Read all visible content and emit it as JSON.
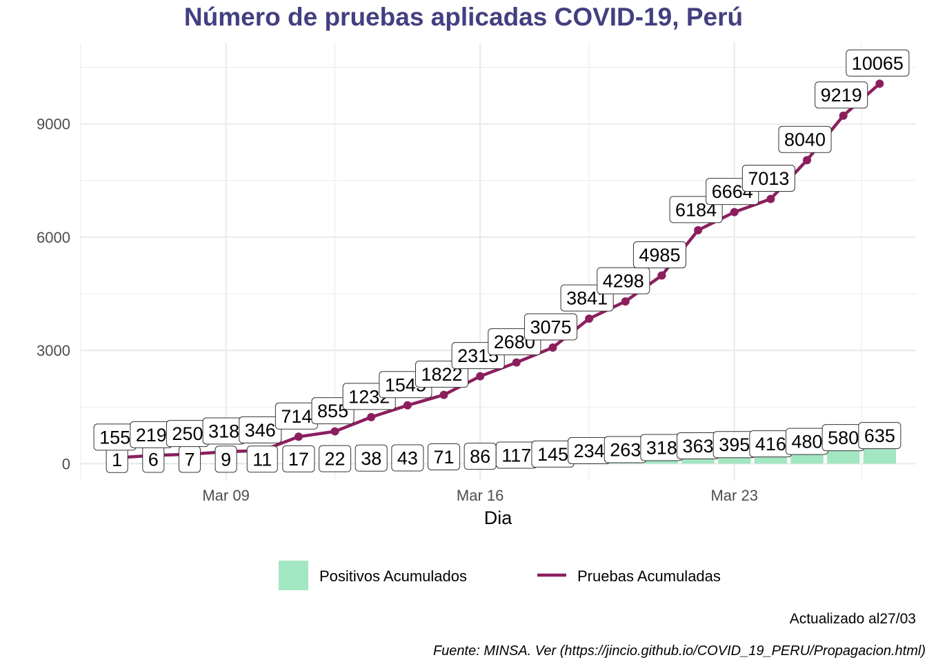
{
  "chart_data": {
    "type": "line",
    "title": "Número de pruebas aplicadas COVID-19, Perú",
    "xlabel": "Dia",
    "ylabel": "",
    "x": [
      "2020-03-06",
      "2020-03-07",
      "2020-03-08",
      "2020-03-09",
      "2020-03-10",
      "2020-03-11",
      "2020-03-12",
      "2020-03-13",
      "2020-03-14",
      "2020-03-15",
      "2020-03-16",
      "2020-03-17",
      "2020-03-18",
      "2020-03-19",
      "2020-03-20",
      "2020-03-21",
      "2020-03-22",
      "2020-03-23",
      "2020-03-24",
      "2020-03-25",
      "2020-03-26",
      "2020-03-27"
    ],
    "x_ticks": [
      {
        "date": "2020-03-09",
        "label": "Mar 09"
      },
      {
        "date": "2020-03-16",
        "label": "Mar 16"
      },
      {
        "date": "2020-03-23",
        "label": "Mar 23"
      }
    ],
    "y_ticks": [
      0,
      3000,
      6000,
      9000
    ],
    "ylim": [
      -450,
      11150
    ],
    "xlim": [
      "2020-03-05",
      "2020-03-28"
    ],
    "grid": true,
    "legend_position": "bottom",
    "series": [
      {
        "name": "Pruebas Acumuladas",
        "kind": "line",
        "color": "#8B1F5E",
        "x": [
          "2020-03-06",
          "2020-03-07",
          "2020-03-08",
          "2020-03-09",
          "2020-03-10",
          "2020-03-11",
          "2020-03-12",
          "2020-03-13",
          "2020-03-14",
          "2020-03-15",
          "2020-03-16",
          "2020-03-17",
          "2020-03-18",
          "2020-03-19",
          "2020-03-20",
          "2020-03-21",
          "2020-03-22",
          "2020-03-23",
          "2020-03-24",
          "2020-03-25",
          "2020-03-26",
          "2020-03-27"
        ],
        "values": [
          155,
          219,
          250,
          318,
          346,
          714,
          855,
          1232,
          1545,
          1822,
          2315,
          2680,
          3075,
          3841,
          4298,
          4985,
          6184,
          6664,
          7013,
          8040,
          9219,
          10065
        ],
        "labels": [
          "155",
          "219",
          "250",
          "318",
          "346",
          "714",
          "855",
          "1232",
          "1545",
          "1822",
          "2315",
          "2680",
          "3075",
          "3841",
          "4298",
          "4985",
          "6184",
          "6664",
          "7013",
          "8040",
          "9219",
          "10065"
        ]
      },
      {
        "name": "Positivos Acumulados",
        "kind": "bar",
        "color": "#A3E6C2",
        "x": [
          "2020-03-06",
          "2020-03-07",
          "2020-03-08",
          "2020-03-09",
          "2020-03-10",
          "2020-03-11",
          "2020-03-12",
          "2020-03-13",
          "2020-03-14",
          "2020-03-15",
          "2020-03-16",
          "2020-03-17",
          "2020-03-18",
          "2020-03-19",
          "2020-03-20",
          "2020-03-21",
          "2020-03-22",
          "2020-03-23",
          "2020-03-24",
          "2020-03-25",
          "2020-03-26",
          "2020-03-27"
        ],
        "values": [
          1,
          6,
          7,
          9,
          11,
          17,
          22,
          38,
          43,
          71,
          86,
          117,
          145,
          234,
          263,
          318,
          363,
          395,
          416,
          480,
          580,
          635
        ],
        "labels": [
          "1",
          "6",
          "7",
          "9",
          "11",
          "17",
          "22",
          "38",
          "43",
          "71",
          "86",
          "117",
          "145",
          "234",
          "263",
          "318",
          "363",
          "395",
          "416",
          "480",
          "580",
          "635"
        ]
      }
    ],
    "legend": [
      {
        "name": "Positivos Acumulados",
        "kind": "bar",
        "color": "#A3E6C2"
      },
      {
        "name": "Pruebas Acumuladas",
        "kind": "line",
        "color": "#8B1F5E"
      }
    ],
    "captions": [
      "Actualizado al27/03",
      "Fuente: MINSA. Ver (https://jincio.github.io/COVID_19_PERU/Propagacion.html)"
    ],
    "colors": {
      "title": "#433F80",
      "grid": "#EBEBEB",
      "tick_text": "#4d4d4d",
      "label_border": "#333333"
    }
  }
}
